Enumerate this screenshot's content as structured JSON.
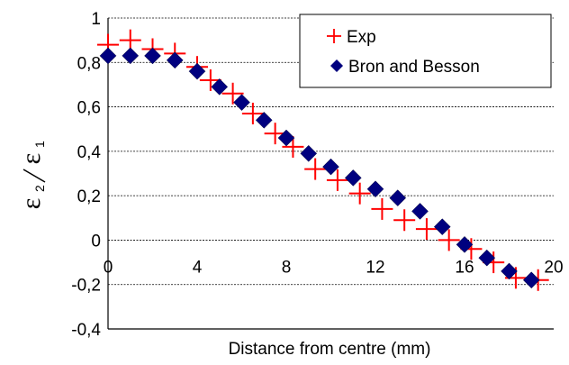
{
  "chart_data": {
    "type": "scatter",
    "title": "",
    "xlabel": "Distance from centre (mm)",
    "ylabel": {
      "symbol": "ε",
      "numerator_sub": "2",
      "denominator_sub": "1"
    },
    "xlim": [
      0,
      20
    ],
    "ylim": [
      -0.4,
      1
    ],
    "x_ticks": [
      {
        "value": 0,
        "label": "0"
      },
      {
        "value": 4,
        "label": "4"
      },
      {
        "value": 8,
        "label": "8"
      },
      {
        "value": 12,
        "label": "12"
      },
      {
        "value": 16,
        "label": "16"
      },
      {
        "value": 20,
        "label": "20"
      }
    ],
    "y_ticks": [
      {
        "value": 1,
        "label": "1"
      },
      {
        "value": 0.8,
        "label": "0,8"
      },
      {
        "value": 0.6,
        "label": "0,6"
      },
      {
        "value": 0.4,
        "label": "0,4"
      },
      {
        "value": 0.2,
        "label": "0,2"
      },
      {
        "value": 0,
        "label": "0"
      },
      {
        "value": -0.2,
        "label": "-0,2"
      },
      {
        "value": -0.4,
        "label": "-0,4"
      }
    ],
    "grid": "horizontal",
    "legend_position": "top-right",
    "series": [
      {
        "name": "Exp",
        "marker": "plus",
        "color": "#ff0000",
        "points": [
          [
            0.0,
            0.88
          ],
          [
            1.0,
            0.9
          ],
          [
            2.0,
            0.86
          ],
          [
            3.0,
            0.84
          ],
          [
            4.0,
            0.78
          ],
          [
            4.6,
            0.72
          ],
          [
            5.6,
            0.66
          ],
          [
            6.5,
            0.57
          ],
          [
            7.5,
            0.48
          ],
          [
            8.3,
            0.42
          ],
          [
            9.3,
            0.32
          ],
          [
            10.3,
            0.27
          ],
          [
            11.3,
            0.21
          ],
          [
            12.3,
            0.14
          ],
          [
            13.3,
            0.09
          ],
          [
            14.3,
            0.05
          ],
          [
            15.3,
            0.0
          ],
          [
            16.3,
            -0.04
          ],
          [
            17.3,
            -0.1
          ],
          [
            18.3,
            -0.17
          ],
          [
            19.3,
            -0.18
          ]
        ]
      },
      {
        "name": "Bron and Besson",
        "marker": "diamond",
        "color": "#00007f",
        "points": [
          [
            0.0,
            0.83
          ],
          [
            1.0,
            0.83
          ],
          [
            2.0,
            0.83
          ],
          [
            3.0,
            0.81
          ],
          [
            4.0,
            0.76
          ],
          [
            5.0,
            0.69
          ],
          [
            6.0,
            0.62
          ],
          [
            7.0,
            0.54
          ],
          [
            8.0,
            0.46
          ],
          [
            9.0,
            0.39
          ],
          [
            10.0,
            0.33
          ],
          [
            11.0,
            0.28
          ],
          [
            12.0,
            0.23
          ],
          [
            13.0,
            0.19
          ],
          [
            14.0,
            0.13
          ],
          [
            15.0,
            0.06
          ],
          [
            16.0,
            -0.02
          ],
          [
            17.0,
            -0.08
          ],
          [
            18.0,
            -0.14
          ],
          [
            19.0,
            -0.18
          ]
        ]
      }
    ]
  }
}
